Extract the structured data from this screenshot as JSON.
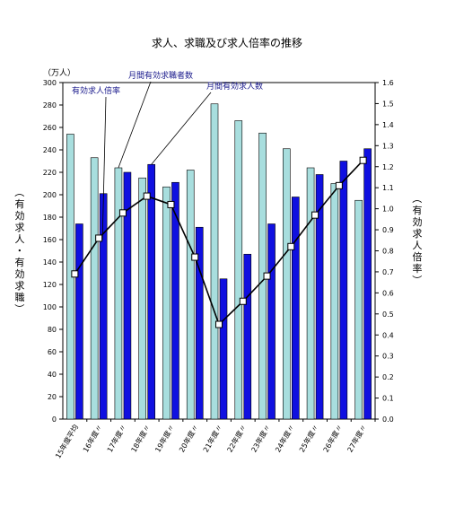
{
  "chart_data": {
    "type": "bar",
    "title": "求人、求職及び求人倍率の推移",
    "left_unit": "（万人）",
    "left_axis_label": "（有効求人・有効求職）",
    "right_axis_label": "（有効求人倍率）",
    "categories": [
      "15年度平均",
      "16年度〃",
      "17年度〃",
      "18年度〃",
      "19年度〃",
      "20年度〃",
      "21年度〃",
      "22年度〃",
      "23年度〃",
      "24年度〃",
      "25年度〃",
      "26年度〃",
      "27年度〃"
    ],
    "ylim_left": [
      0,
      300
    ],
    "yticks_left": [
      "0",
      "20",
      "40",
      "60",
      "80",
      "100",
      "120",
      "140",
      "160",
      "180",
      "200",
      "220",
      "240",
      "260",
      "280",
      "300"
    ],
    "ylim_right": [
      0,
      1.6
    ],
    "yticks_right": [
      "0.0",
      "0.1",
      "0.2",
      "0.3",
      "0.4",
      "0.5",
      "0.6",
      "0.7",
      "0.8",
      "0.9",
      "1.0",
      "1.1",
      "1.2",
      "1.3",
      "1.4",
      "1.5",
      "1.6"
    ],
    "series": [
      {
        "name": "月間有効求職者数",
        "type": "bar",
        "axis": "left",
        "color": "#a8dede",
        "values": [
          254,
          233,
          224,
          215,
          207,
          222,
          281,
          266,
          255,
          241,
          224,
          210,
          195
        ]
      },
      {
        "name": "月間有効求人数",
        "type": "bar",
        "axis": "left",
        "color": "#1010e0",
        "values": [
          174,
          201,
          220,
          227,
          211,
          171,
          125,
          147,
          174,
          198,
          218,
          230,
          241
        ]
      },
      {
        "name": "有効求人倍率",
        "type": "line",
        "axis": "right",
        "color": "#000000",
        "values": [
          0.69,
          0.86,
          0.98,
          1.06,
          1.02,
          0.77,
          0.45,
          0.56,
          0.68,
          0.82,
          0.97,
          1.11,
          1.23
        ]
      }
    ],
    "annotations": [
      {
        "text": "有効求人倍率",
        "series": "有効求人倍率"
      },
      {
        "text": "月間有効求職者数",
        "series": "月間有効求職者数"
      },
      {
        "text": "月間有効求人数",
        "series": "月間有効求人数"
      }
    ]
  }
}
